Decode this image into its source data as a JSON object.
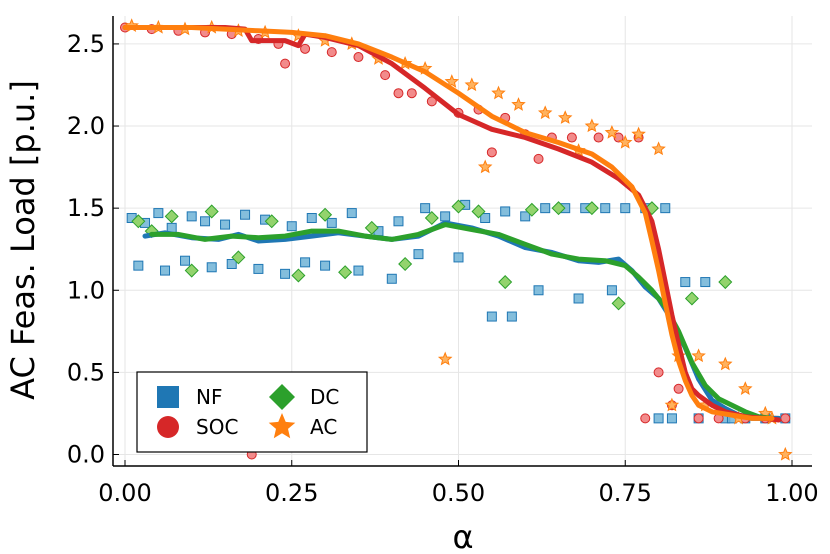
{
  "chart_data": {
    "type": "scatter",
    "title": "",
    "xlabel": "α",
    "ylabel": "AC Feas. Load [p.u.]",
    "xlim": [
      -0.018,
      1.03
    ],
    "ylim": [
      -0.07,
      2.67
    ],
    "grid": true,
    "legend_position": "bottom-left",
    "xticks": [
      0.0,
      0.25,
      0.5,
      0.75,
      1.0
    ],
    "xtick_labels": [
      "0.00",
      "0.25",
      "0.50",
      "0.75",
      "1.00"
    ],
    "yticks": [
      0.0,
      0.5,
      1.0,
      1.5,
      2.0,
      2.5
    ],
    "ytick_labels": [
      "0.0",
      "0.5",
      "1.0",
      "1.5",
      "2.0",
      "2.5"
    ],
    "series": [
      {
        "name": "NF",
        "color": "#1f77b4",
        "marker": "square",
        "line_x": [
          0.03,
          0.06,
          0.1,
          0.14,
          0.17,
          0.2,
          0.24,
          0.28,
          0.32,
          0.36,
          0.4,
          0.44,
          0.48,
          0.52,
          0.56,
          0.6,
          0.64,
          0.68,
          0.71,
          0.74,
          0.76,
          0.78,
          0.8,
          0.82,
          0.84,
          0.86,
          0.88,
          0.9,
          0.92,
          0.94,
          0.96,
          0.98
        ],
        "line_y": [
          1.33,
          1.35,
          1.32,
          1.31,
          1.34,
          1.3,
          1.31,
          1.33,
          1.35,
          1.33,
          1.31,
          1.33,
          1.41,
          1.38,
          1.33,
          1.26,
          1.23,
          1.18,
          1.17,
          1.19,
          1.12,
          1.02,
          0.95,
          0.82,
          0.65,
          0.46,
          0.33,
          0.28,
          0.24,
          0.22,
          0.22,
          0.22
        ],
        "points_x": [
          0.01,
          0.03,
          0.05,
          0.07,
          0.1,
          0.12,
          0.15,
          0.18,
          0.21,
          0.25,
          0.28,
          0.31,
          0.34,
          0.38,
          0.41,
          0.45,
          0.48,
          0.51,
          0.54,
          0.57,
          0.6,
          0.63,
          0.66,
          0.69,
          0.72,
          0.75,
          0.78,
          0.81,
          0.84,
          0.87,
          0.9,
          0.93,
          0.96,
          0.99,
          0.02,
          0.06,
          0.09,
          0.13,
          0.16,
          0.2,
          0.24,
          0.27,
          0.3,
          0.35,
          0.4,
          0.44,
          0.5,
          0.55,
          0.58,
          0.62,
          0.68,
          0.73,
          0.8,
          0.82,
          0.86,
          0.91
        ],
        "points_y": [
          1.44,
          1.41,
          1.47,
          1.38,
          1.45,
          1.42,
          1.4,
          1.46,
          1.43,
          1.39,
          1.44,
          1.41,
          1.47,
          1.36,
          1.42,
          1.5,
          1.45,
          1.52,
          1.44,
          1.48,
          1.45,
          1.5,
          1.5,
          1.5,
          1.5,
          1.5,
          1.5,
          1.5,
          1.05,
          1.05,
          0.22,
          0.22,
          0.22,
          0.22,
          1.15,
          1.12,
          1.18,
          1.14,
          1.16,
          1.13,
          1.1,
          1.17,
          1.15,
          1.12,
          1.07,
          1.22,
          1.2,
          0.84,
          0.84,
          1.0,
          0.95,
          1.0,
          0.22,
          0.22,
          0.22,
          0.22
        ]
      },
      {
        "name": "DC",
        "color": "#2ca02c",
        "marker": "diamond",
        "line_x": [
          0.04,
          0.08,
          0.12,
          0.16,
          0.2,
          0.24,
          0.28,
          0.32,
          0.36,
          0.4,
          0.44,
          0.48,
          0.52,
          0.56,
          0.6,
          0.64,
          0.68,
          0.72,
          0.75,
          0.77,
          0.79,
          0.81,
          0.83,
          0.85,
          0.87,
          0.89,
          0.91,
          0.93,
          0.95,
          0.97
        ],
        "line_y": [
          1.34,
          1.34,
          1.31,
          1.33,
          1.32,
          1.33,
          1.36,
          1.36,
          1.33,
          1.31,
          1.34,
          1.4,
          1.37,
          1.34,
          1.28,
          1.22,
          1.19,
          1.18,
          1.15,
          1.08,
          1.0,
          0.9,
          0.75,
          0.56,
          0.42,
          0.34,
          0.3,
          0.26,
          0.23,
          0.22
        ],
        "points_x": [
          0.02,
          0.04,
          0.07,
          0.1,
          0.13,
          0.17,
          0.22,
          0.26,
          0.3,
          0.33,
          0.37,
          0.42,
          0.46,
          0.5,
          0.53,
          0.57,
          0.61,
          0.65,
          0.7,
          0.74,
          0.79,
          0.85,
          0.9
        ],
        "points_y": [
          1.42,
          1.36,
          1.45,
          1.12,
          1.48,
          1.2,
          1.42,
          1.09,
          1.46,
          1.11,
          1.38,
          1.16,
          1.44,
          1.51,
          1.48,
          1.05,
          1.49,
          1.5,
          1.5,
          0.92,
          1.5,
          0.95,
          1.05
        ]
      },
      {
        "name": "SOC",
        "color": "#d62728",
        "marker": "circle",
        "line_x": [
          0.0,
          0.05,
          0.1,
          0.15,
          0.18,
          0.19,
          0.21,
          0.24,
          0.26,
          0.27,
          0.3,
          0.35,
          0.4,
          0.45,
          0.5,
          0.55,
          0.6,
          0.65,
          0.7,
          0.74,
          0.77,
          0.79,
          0.8,
          0.81,
          0.82,
          0.83,
          0.84,
          0.85,
          0.86,
          0.88,
          0.9,
          0.93,
          0.96,
          0.98
        ],
        "line_y": [
          2.6,
          2.6,
          2.6,
          2.6,
          2.59,
          2.52,
          2.52,
          2.52,
          2.49,
          2.56,
          2.54,
          2.49,
          2.38,
          2.23,
          2.07,
          1.98,
          1.93,
          1.86,
          1.78,
          1.68,
          1.58,
          1.42,
          1.25,
          1.05,
          0.85,
          0.67,
          0.5,
          0.4,
          0.36,
          0.3,
          0.26,
          0.23,
          0.22,
          0.21
        ],
        "points_x": [
          0.0,
          0.04,
          0.08,
          0.12,
          0.16,
          0.2,
          0.23,
          0.27,
          0.31,
          0.35,
          0.39,
          0.43,
          0.46,
          0.5,
          0.53,
          0.57,
          0.6,
          0.64,
          0.67,
          0.71,
          0.74,
          0.77,
          0.8,
          0.83,
          0.86,
          0.89,
          0.93,
          0.96,
          0.99,
          0.24,
          0.19,
          0.41,
          0.55,
          0.62,
          0.78,
          0.82
        ],
        "points_y": [
          2.6,
          2.59,
          2.58,
          2.57,
          2.56,
          2.53,
          2.5,
          2.47,
          2.45,
          2.42,
          2.31,
          2.2,
          2.15,
          2.08,
          2.1,
          2.05,
          1.95,
          1.93,
          1.93,
          1.93,
          1.93,
          1.93,
          0.5,
          0.4,
          0.22,
          0.22,
          0.22,
          0.22,
          0.22,
          2.38,
          0.0,
          2.2,
          1.84,
          1.8,
          0.22,
          0.3
        ]
      },
      {
        "name": "AC",
        "color": "#ff7f0e",
        "marker": "star",
        "line_x": [
          0.0,
          0.05,
          0.1,
          0.15,
          0.2,
          0.25,
          0.3,
          0.35,
          0.4,
          0.45,
          0.5,
          0.55,
          0.6,
          0.65,
          0.7,
          0.73,
          0.76,
          0.78,
          0.79,
          0.8,
          0.81,
          0.82,
          0.83,
          0.84,
          0.85,
          0.86,
          0.88,
          0.91,
          0.94,
          0.97
        ],
        "line_y": [
          2.6,
          2.6,
          2.6,
          2.59,
          2.58,
          2.57,
          2.55,
          2.5,
          2.42,
          2.33,
          2.2,
          2.06,
          1.96,
          1.9,
          1.83,
          1.75,
          1.63,
          1.47,
          1.3,
          1.12,
          0.92,
          0.73,
          0.57,
          0.45,
          0.36,
          0.3,
          0.26,
          0.24,
          0.22,
          0.22
        ],
        "points_x": [
          0.01,
          0.05,
          0.09,
          0.13,
          0.17,
          0.21,
          0.26,
          0.3,
          0.34,
          0.38,
          0.42,
          0.45,
          0.49,
          0.52,
          0.56,
          0.59,
          0.63,
          0.66,
          0.7,
          0.73,
          0.77,
          0.8,
          0.83,
          0.86,
          0.9,
          0.93,
          0.96,
          0.99,
          0.48,
          0.54,
          0.68,
          0.75,
          0.82,
          0.87,
          0.92,
          0.97
        ],
        "points_y": [
          2.61,
          2.6,
          2.59,
          2.6,
          2.58,
          2.57,
          2.55,
          2.52,
          2.5,
          2.41,
          2.38,
          2.35,
          2.27,
          2.25,
          2.2,
          2.13,
          2.08,
          2.05,
          2.0,
          1.96,
          1.95,
          1.86,
          0.6,
          0.6,
          0.55,
          0.4,
          0.25,
          0.0,
          0.58,
          1.75,
          1.85,
          1.9,
          0.3,
          0.3,
          0.22,
          0.22
        ]
      }
    ]
  }
}
